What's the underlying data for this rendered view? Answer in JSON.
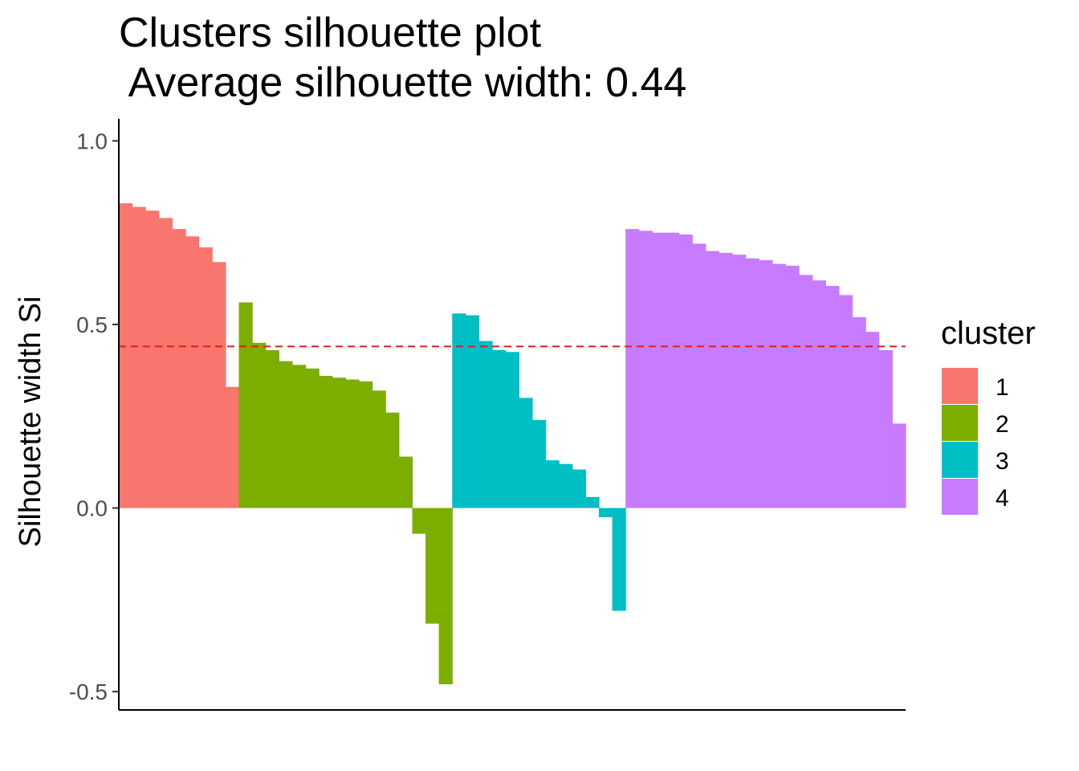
{
  "chart_data": {
    "type": "bar",
    "title": "Clusters silhouette plot",
    "subtitle": " Average silhouette width: 0.44",
    "ylabel": "Silhouette width Si",
    "xlabel": "",
    "ylim": [
      -0.55,
      1.06
    ],
    "yticks": [
      -0.5,
      0.0,
      0.5,
      1.0
    ],
    "ytick_labels": [
      "-0.5",
      "0.0",
      "0.5",
      "1.0"
    ],
    "average_silhouette_width": 0.44,
    "reference_line_color": "#e41a1c",
    "grid": false,
    "legend": {
      "title": "cluster",
      "position": "right"
    },
    "series": [
      {
        "name": "1",
        "color": "#F8766D",
        "values": [
          0.83,
          0.82,
          0.81,
          0.79,
          0.76,
          0.74,
          0.71,
          0.67,
          0.33
        ]
      },
      {
        "name": "2",
        "color": "#7CAE00",
        "values": [
          0.56,
          0.45,
          0.43,
          0.4,
          0.39,
          0.38,
          0.36,
          0.355,
          0.35,
          0.345,
          0.32,
          0.26,
          0.14,
          -0.07,
          -0.315,
          -0.48
        ]
      },
      {
        "name": "3",
        "color": "#00BFC4",
        "values": [
          0.53,
          0.525,
          0.455,
          0.43,
          0.425,
          0.3,
          0.24,
          0.13,
          0.12,
          0.105,
          0.03,
          -0.025,
          -0.28
        ]
      },
      {
        "name": "4",
        "color": "#C77CFF",
        "values": [
          0.76,
          0.755,
          0.75,
          0.75,
          0.745,
          0.72,
          0.7,
          0.695,
          0.69,
          0.68,
          0.675,
          0.665,
          0.66,
          0.635,
          0.62,
          0.605,
          0.58,
          0.52,
          0.48,
          0.43,
          0.23
        ]
      }
    ]
  }
}
